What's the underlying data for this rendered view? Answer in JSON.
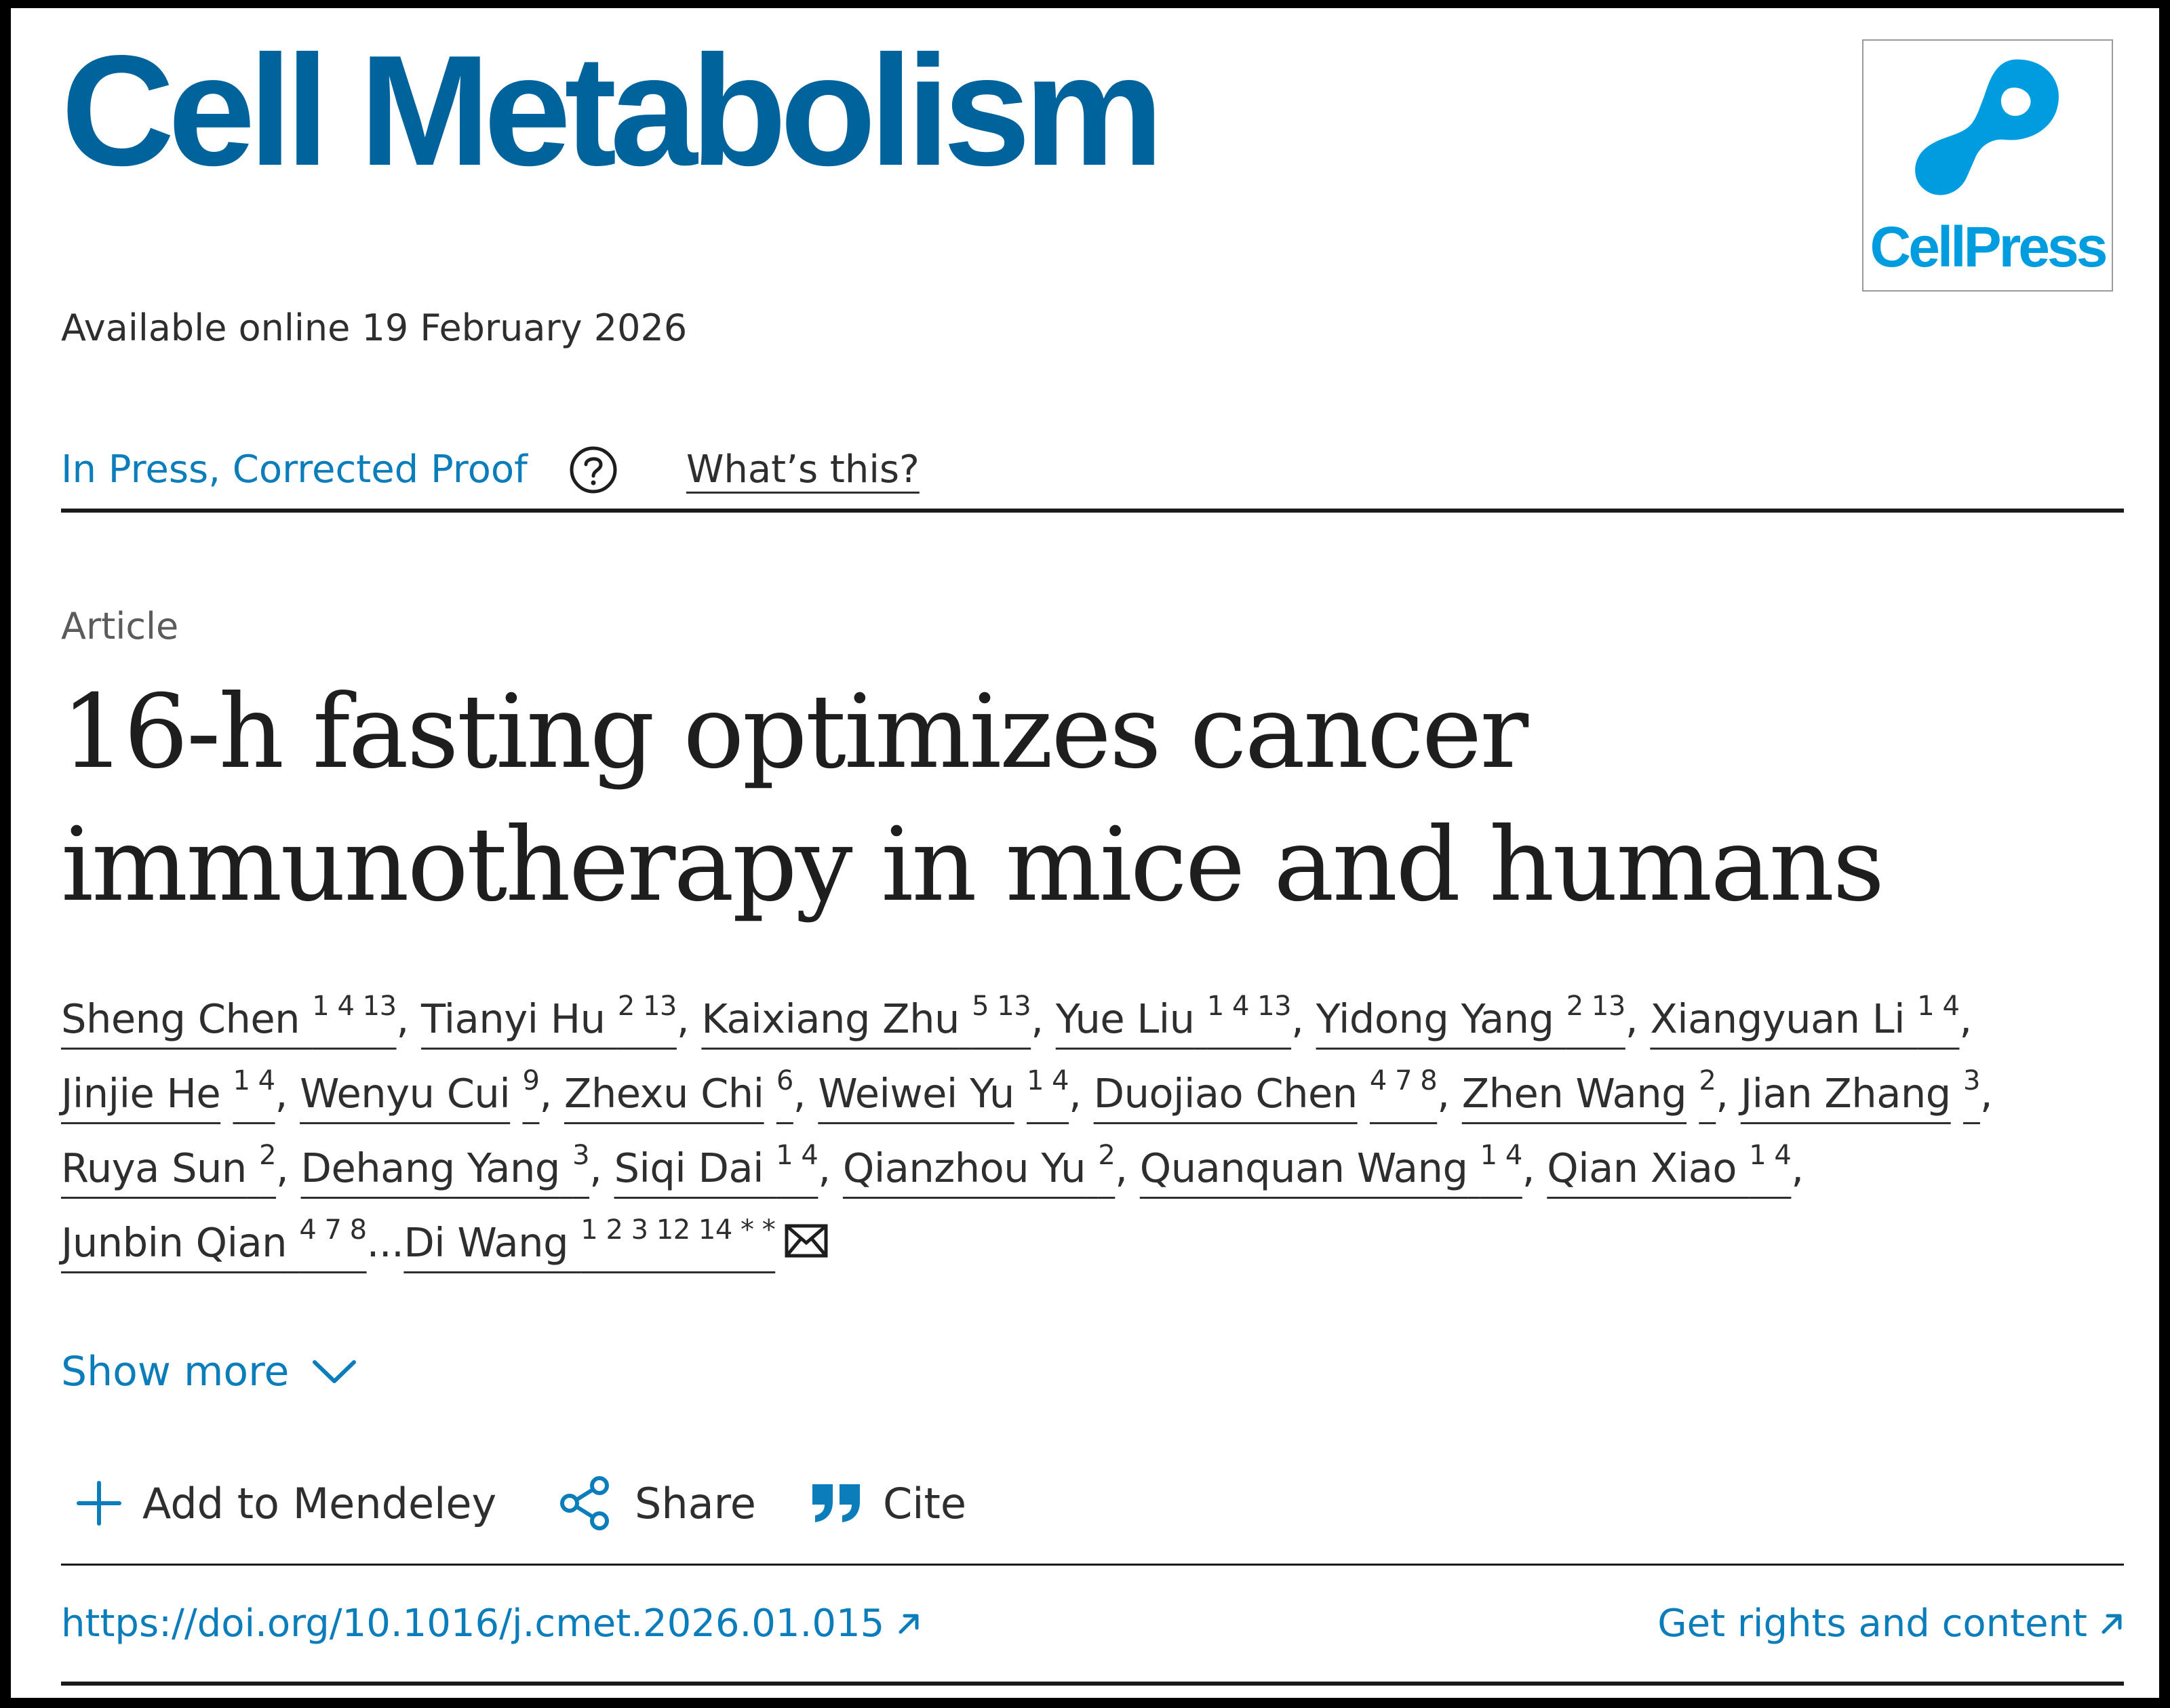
{
  "journal": {
    "title": "Cell Metabolism",
    "publisher_logo_text": "CellPress",
    "brand_color": "#00639c",
    "logo_color": "#009ce0"
  },
  "available_online": "Available online 19 February 2026",
  "status": {
    "label": "In Press, Corrected Proof",
    "help_icon": "question-circle-icon",
    "whats_this": "What’s this?"
  },
  "article": {
    "type": "Article",
    "title": "16-h fasting optimizes cancer immunotherapy in mice and humans"
  },
  "authors": [
    {
      "name": "Sheng Chen",
      "aff": "1 4 13"
    },
    {
      "name": "Tianyi Hu",
      "aff": "2 13"
    },
    {
      "name": "Kaixiang Zhu",
      "aff": "5 13"
    },
    {
      "name": "Yue Liu",
      "aff": "1 4 13"
    },
    {
      "name": "Yidong Yang",
      "aff": "2 13"
    },
    {
      "name": "Xiangyuan Li",
      "aff": "1 4"
    },
    {
      "name": "Jinjie He",
      "aff": "1 4"
    },
    {
      "name": "Wenyu Cui",
      "aff": "9"
    },
    {
      "name": "Zhexu Chi",
      "aff": "6"
    },
    {
      "name": "Weiwei Yu",
      "aff": "1 4"
    },
    {
      "name": "Duojiao Chen",
      "aff": "4 7 8"
    },
    {
      "name": "Zhen Wang",
      "aff": "2"
    },
    {
      "name": "Jian Zhang",
      "aff": "3"
    },
    {
      "name": "Ruya Sun",
      "aff": "2"
    },
    {
      "name": "Dehang Yang",
      "aff": "3"
    },
    {
      "name": "Siqi Dai",
      "aff": "1 4"
    },
    {
      "name": "Qianzhou Yu",
      "aff": "2"
    },
    {
      "name": "Quanquan Wang",
      "aff": "1 4"
    },
    {
      "name": "Qian Xiao",
      "aff": "1 4"
    },
    {
      "name": "Junbin Qian",
      "aff": "4 7 8"
    },
    {
      "name": "Di Wang",
      "aff": "1 2 3 12 14 * *"
    }
  ],
  "authors_ellipsis": "...",
  "show_more": "Show more",
  "actions": {
    "mendeley": "Add to Mendeley",
    "share": "Share",
    "cite": "Cite"
  },
  "doi": "https://doi.org/10.1016/j.cmet.2026.01.015",
  "rights": "Get rights and content",
  "colors": {
    "link": "#0c7dbb",
    "text": "#2e2e2e"
  }
}
